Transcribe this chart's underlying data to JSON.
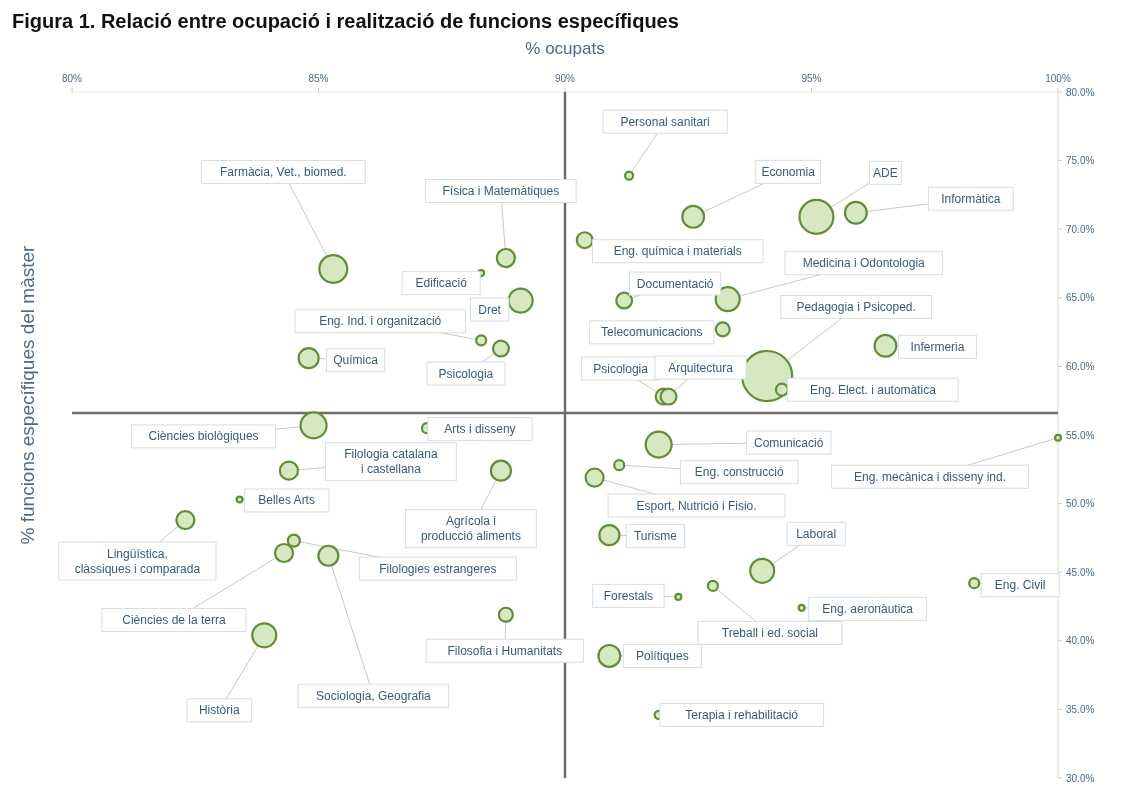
{
  "chart_data": {
    "type": "bubble",
    "title": "Figura 1. Relació entre ocupació i realització de funcions específiques",
    "xlabel": "% ocupats",
    "ylabel": "% funcions específiques del màster",
    "xlim": [
      80,
      100
    ],
    "ylim": [
      30,
      80
    ],
    "xticks": [
      {
        "value": 80,
        "label": "80%"
      },
      {
        "value": 85,
        "label": "85%"
      },
      {
        "value": 90,
        "label": "90%"
      },
      {
        "value": 95,
        "label": "95%"
      },
      {
        "value": 100,
        "label": "100%"
      }
    ],
    "yticks": [
      {
        "value": 30,
        "label": "30.0%"
      },
      {
        "value": 35,
        "label": "35.0%"
      },
      {
        "value": 40,
        "label": "40.0%"
      },
      {
        "value": 45,
        "label": "45.0%"
      },
      {
        "value": 50,
        "label": "50.0%"
      },
      {
        "value": 55,
        "label": "55.0%"
      },
      {
        "value": 60,
        "label": "60.0%"
      },
      {
        "value": 65,
        "label": "65.0%"
      },
      {
        "value": 70,
        "label": "70.0%"
      },
      {
        "value": 75,
        "label": "75.0%"
      },
      {
        "value": 80,
        "label": "80.0%"
      }
    ],
    "grid": false,
    "ref_lines": [
      {
        "axis": "x",
        "value": 90,
        "color": "#6e6e6e"
      },
      {
        "axis": "y",
        "value": 56.6,
        "color": "#6e6e6e"
      }
    ],
    "series": [
      {
        "color": "#d5e8c0",
        "x": [
          91.3,
          92.6,
          95.1,
          95.9,
          90.4,
          91.2,
          93.3,
          93.2,
          94.1,
          96.5,
          94.4,
          92.0,
          92.1,
          85.3,
          88.8,
          88.3,
          89.1,
          88.3,
          88.7,
          84.8,
          84.9,
          87.2,
          84.4,
          88.7,
          83.4,
          82.3,
          84.5,
          84.3,
          85.2,
          83.9,
          88.8,
          91.9,
          91.1,
          90.6,
          100,
          90.9,
          94.0,
          98.3,
          92.3,
          93.0,
          94.8,
          90.9,
          91.9
        ],
        "values": [
          73.9,
          70.9,
          70.9,
          71.2,
          69.2,
          64.8,
          64.9,
          62.7,
          59.3,
          61.5,
          58.3,
          57.8,
          57.8,
          67.1,
          67.9,
          66.8,
          64.8,
          61.9,
          61.3,
          60.6,
          55.7,
          55.5,
          52.4,
          52.4,
          50.3,
          48.8,
          47.3,
          46.4,
          46.2,
          40.4,
          41.9,
          54.3,
          52.8,
          51.9,
          54.8,
          47.7,
          45.1,
          44.2,
          43.2,
          44.0,
          42.4,
          38.9,
          34.6
        ],
        "sizes": [
          0.026,
          0.19,
          0.46,
          0.19,
          0.1,
          0.1,
          0.23,
          0.078,
          1,
          0.19,
          0.058,
          0.1,
          0.1,
          0.31,
          0.13,
          0.014,
          0.23,
          0.04,
          0.1,
          0.16,
          0.27,
          0.04,
          0.13,
          0.16,
          0.014,
          0.13,
          0.058,
          0.13,
          0.16,
          0.23,
          0.078,
          0.27,
          0.04,
          0.13,
          0.014,
          0.16,
          0.23,
          0.04,
          0.014,
          0.04,
          0.014,
          0.19,
          0.026
        ]
      }
    ],
    "annotations": [
      {
        "text": "Personal sanitari",
        "x": 91.3,
        "y": 73.9
      },
      {
        "text": "Economia",
        "x": 92.6,
        "y": 70.9
      },
      {
        "text": "ADE",
        "x": 95.1,
        "y": 70.9
      },
      {
        "text": "Informàtica",
        "x": 95.9,
        "y": 71.2
      },
      {
        "text": "Eng. química i materials",
        "x": 90.4,
        "y": 69.2
      },
      {
        "text": "Documentació",
        "x": 91.2,
        "y": 64.8
      },
      {
        "text": "Medicina i Odontologia",
        "x": 93.3,
        "y": 64.9
      },
      {
        "text": "Telecomunicacions",
        "x": 93.2,
        "y": 62.7
      },
      {
        "text": "Pedagogia i Psicoped.",
        "x": 94.1,
        "y": 59.3
      },
      {
        "text": "Infermeria",
        "x": 96.5,
        "y": 61.5
      },
      {
        "text": "Eng. Elect. i automàtica",
        "x": 94.4,
        "y": 58.3
      },
      {
        "text": "Psicologia",
        "x": 92.0,
        "y": 57.8
      },
      {
        "text": "Arquitectura",
        "x": 92.1,
        "y": 57.8
      },
      {
        "text": "Farmàcia, Vet., biomed.",
        "x": 85.3,
        "y": 67.1
      },
      {
        "text": "Física i Matemàtiques",
        "x": 88.8,
        "y": 67.9
      },
      {
        "text": "Edificació",
        "x": 88.3,
        "y": 66.8
      },
      {
        "text": "Dret",
        "x": 89.1,
        "y": 64.8
      },
      {
        "text": "Eng. Ind. i organització",
        "x": 88.3,
        "y": 61.9
      },
      {
        "text": "Psicologia",
        "x": 88.7,
        "y": 61.3
      },
      {
        "text": "Química",
        "x": 84.8,
        "y": 60.6
      },
      {
        "text": "Ciències biològiques",
        "x": 84.9,
        "y": 55.7
      },
      {
        "text": "Arts i disseny",
        "x": 87.2,
        "y": 55.5
      },
      {
        "text": "Filologia catalana i castellana",
        "x": 84.4,
        "y": 52.4
      },
      {
        "text": "Agrícola i producció aliments",
        "x": 88.7,
        "y": 52.4
      },
      {
        "text": "Belles Arts",
        "x": 83.4,
        "y": 50.3
      },
      {
        "text": "Lingüística, clàssiques i comparada",
        "x": 82.3,
        "y": 48.8
      },
      {
        "text": "Filologies estrangeres",
        "x": 84.5,
        "y": 47.3
      },
      {
        "text": "Ciències de la terra",
        "x": 84.3,
        "y": 46.4
      },
      {
        "text": "Sociologia, Geografia",
        "x": 85.2,
        "y": 46.2
      },
      {
        "text": "Història",
        "x": 83.9,
        "y": 40.4
      },
      {
        "text": "Filosofia i Humanitats",
        "x": 88.8,
        "y": 41.9
      },
      {
        "text": "Comunicació",
        "x": 91.9,
        "y": 54.3
      },
      {
        "text": "Eng. construcció",
        "x": 91.1,
        "y": 52.8
      },
      {
        "text": "Esport, Nutrició i Fisio.",
        "x": 90.6,
        "y": 51.9
      },
      {
        "text": "Eng. mecànica i disseny ind.",
        "x": 100,
        "y": 54.8
      },
      {
        "text": "Turisme",
        "x": 90.9,
        "y": 47.7
      },
      {
        "text": "Laboral",
        "x": 94.0,
        "y": 45.1
      },
      {
        "text": "Eng. Civil",
        "x": 98.3,
        "y": 44.2
      },
      {
        "text": "Forestals",
        "x": 92.3,
        "y": 43.2
      },
      {
        "text": "Treball i ed. social",
        "x": 93.0,
        "y": 44.0
      },
      {
        "text": "Eng. aeronàutica",
        "x": 94.8,
        "y": 42.4
      },
      {
        "text": "Polítiques",
        "x": 90.9,
        "y": 38.9
      },
      {
        "text": "Terapia i rehabilitació",
        "x": 91.9,
        "y": 34.6
      }
    ]
  }
}
